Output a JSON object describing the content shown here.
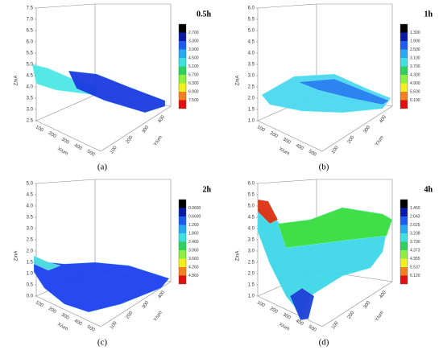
{
  "panels": [
    {
      "label": "(a)",
      "title": "0.5h",
      "z_label": "Z/nA",
      "x_label": "X/um",
      "y_label": "Y/um",
      "z_ticks": [
        "2.5",
        "3.0",
        "3.5",
        "4.0",
        "4.5",
        "5.0",
        "5.5",
        "6.0",
        "6.5",
        "7.0",
        "7.5"
      ],
      "x_ticks": [
        "100",
        "200",
        "300",
        "400",
        "500"
      ],
      "y_ticks": [
        "100",
        "200",
        "300",
        "400"
      ],
      "colorbar": [
        "2.700",
        "3.300",
        "3.900",
        "4.500",
        "5.100",
        "5.700",
        "6.300",
        "6.900",
        "7.500"
      ]
    },
    {
      "label": "(b)",
      "title": "1h",
      "z_label": "Z/nA",
      "x_label": "X/um",
      "y_label": "Y/um",
      "z_ticks": [
        "1.0",
        "1.5",
        "2.0",
        "2.5",
        "3.0",
        "3.5",
        "4.0",
        "4.5",
        "5.0",
        "5.5",
        "6.0"
      ],
      "x_ticks": [
        "100",
        "200",
        "300",
        "400",
        "500"
      ],
      "y_ticks": [
        "100",
        "200",
        "300",
        "400"
      ],
      "colorbar": [
        "1.300",
        "1.900",
        "2.500",
        "3.100",
        "3.700",
        "4.300",
        "4.900",
        "5.500",
        "6.100"
      ]
    },
    {
      "label": "(c)",
      "title": "2h",
      "z_label": "Z/nA",
      "x_label": "X/um",
      "y_label": "Y/um",
      "z_ticks": [
        "0.0",
        "0.5",
        "1.0",
        "1.5",
        "2.0",
        "2.5",
        "3.0",
        "3.5",
        "4.0",
        "4.5",
        "5.0"
      ],
      "x_ticks": [
        "100",
        "200",
        "300",
        "400",
        "500"
      ],
      "y_ticks": [
        "100",
        "200",
        "300",
        "400"
      ],
      "colorbar": [
        "0.0600",
        "0.6600",
        "1.260",
        "1.860",
        "2.460",
        "3.060",
        "3.660",
        "4.260",
        "4.860"
      ]
    },
    {
      "label": "(d)",
      "title": "4h",
      "z_label": "Z/nA",
      "x_label": "X/um",
      "y_label": "Y/um",
      "z_ticks": [
        "1.0",
        "1.5",
        "2.0",
        "2.5",
        "3.0",
        "3.5",
        "4.0",
        "4.5",
        "5.0",
        "5.5",
        "6.0"
      ],
      "x_ticks": [
        "100",
        "200",
        "300",
        "400",
        "500"
      ],
      "y_ticks": [
        "100",
        "200",
        "300",
        "400"
      ],
      "colorbar": [
        "1.460",
        "2.043",
        "2.625",
        "3.208",
        "3.790",
        "4.373",
        "4.955",
        "5.537",
        "6.120"
      ]
    }
  ]
}
